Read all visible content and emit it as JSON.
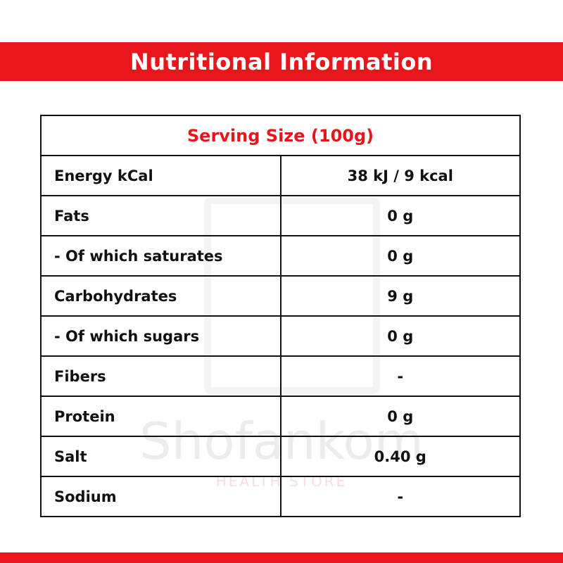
{
  "header": {
    "title": "Nutritional Information"
  },
  "watermark": {
    "name": "Shofankom",
    "tagline": "HEALTH STORE"
  },
  "table": {
    "caption": "Serving Size (100g)",
    "rows": [
      [
        "Energy kCal",
        "38 kJ / 9 kcal"
      ],
      [
        "Fats",
        "0 g"
      ],
      [
        "- Of which saturates",
        "0 g"
      ],
      [
        "Carbohydrates",
        "9 g"
      ],
      [
        "- Of which sugars",
        "0 g"
      ],
      [
        "Fibers",
        "-"
      ],
      [
        "Protein",
        "0 g"
      ],
      [
        "Salt",
        "0.40 g"
      ],
      [
        "Sodium",
        "-"
      ]
    ]
  }
}
